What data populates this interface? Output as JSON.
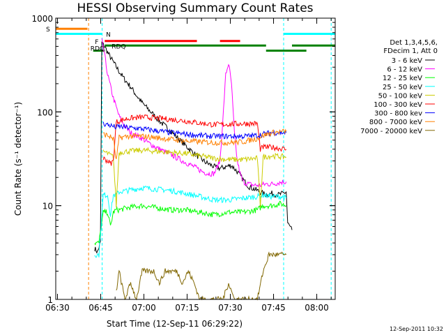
{
  "chart_data": {
    "type": "line",
    "title": "HESSI Observing Summary Count Rates",
    "xlabel": "Start Time (12-Sep-11 06:29:22)",
    "ylabel": "Count Rate (s⁻¹ detector⁻¹)",
    "x_unit": "minutes since 06:29:22",
    "xlim": [
      0,
      97
    ],
    "ylim": [
      1,
      1000
    ],
    "yscale": "log",
    "x_ticks": [
      {
        "value": 0.6,
        "label": "06:30"
      },
      {
        "value": 15.6,
        "label": "06:45"
      },
      {
        "value": 30.6,
        "label": "07:00"
      },
      {
        "value": 45.6,
        "label": "07:15"
      },
      {
        "value": 60.6,
        "label": "07:30"
      },
      {
        "value": 75.6,
        "label": "07:45"
      },
      {
        "value": 90.6,
        "label": "08:00"
      }
    ],
    "y_ticks": [
      {
        "value": 1,
        "label": "1"
      },
      {
        "value": 10,
        "label": "10"
      },
      {
        "value": 100,
        "label": "100"
      },
      {
        "value": 1000,
        "label": "1000"
      }
    ],
    "legend": {
      "placement": "right",
      "header": [
        "Det 1,3,4,5,6,",
        "FDecim 1, Att 0"
      ]
    },
    "series": [
      {
        "name": "3 - 6 keV",
        "color": "#000000",
        "x": [
          13.5,
          14.5,
          15.5,
          16,
          17,
          18,
          20,
          22,
          24,
          26,
          28,
          30,
          33,
          36,
          40,
          44,
          48,
          52,
          55,
          57,
          59,
          61,
          63,
          65,
          67,
          69,
          71,
          73,
          75,
          77,
          79,
          80,
          80.5,
          82
        ],
        "y": [
          3.5,
          3.2,
          4,
          540,
          500,
          430,
          340,
          270,
          220,
          185,
          150,
          125,
          100,
          80,
          62,
          47,
          36,
          29,
          26,
          25,
          26,
          27,
          23,
          19,
          16,
          15,
          14,
          13,
          13.5,
          13,
          13.5,
          14,
          6.5,
          5.5
        ]
      },
      {
        "name": "6 - 12 keV",
        "color": "#ff00ff",
        "x": [
          16,
          17,
          18,
          20,
          22,
          24,
          26,
          28,
          30,
          33,
          36,
          40,
          44,
          48,
          51,
          53,
          55,
          57,
          58,
          59,
          60,
          61,
          62,
          63,
          64,
          65,
          67,
          69,
          71,
          73,
          75,
          77,
          79,
          80
        ],
        "y": [
          580,
          400,
          250,
          140,
          90,
          70,
          60,
          56,
          52,
          45,
          40,
          35,
          30,
          26,
          23,
          22,
          22,
          30,
          80,
          250,
          330,
          200,
          60,
          30,
          22,
          18,
          17,
          16.5,
          16.5,
          17,
          17,
          17.5,
          18,
          18
        ]
      },
      {
        "name": "12 - 25 keV",
        "color": "#00ff00",
        "x": [
          13.5,
          15,
          16.5,
          18,
          19,
          20,
          21,
          22,
          25,
          30,
          35,
          40,
          45,
          50,
          55,
          60,
          65,
          70,
          72,
          75,
          78,
          80
        ],
        "y": [
          4,
          4,
          8.5,
          8.5,
          6,
          8.5,
          9,
          9,
          9.5,
          10,
          9.5,
          9,
          9,
          8.5,
          8,
          8.5,
          8.5,
          9,
          10,
          10,
          10.5,
          10
        ]
      },
      {
        "name": "25 - 50 keV",
        "color": "#00ffff",
        "x": [
          13.5,
          15,
          16.5,
          18,
          19,
          20,
          21,
          22,
          25,
          30,
          35,
          40,
          45,
          50,
          55,
          60,
          65,
          70,
          72,
          75,
          78,
          80
        ],
        "y": [
          3,
          3,
          13,
          13,
          8,
          13,
          13,
          14,
          14.5,
          15.5,
          15,
          14.5,
          13.5,
          12.5,
          11.5,
          11.5,
          12,
          12.5,
          13,
          12.5,
          12.5,
          12
        ]
      },
      {
        "name": "50 - 100 keV",
        "color": "#cccc00",
        "x": [
          16.5,
          18,
          20,
          21,
          22,
          25,
          30,
          35,
          40,
          45,
          50,
          55,
          60,
          65,
          70,
          71,
          72,
          75,
          80
        ],
        "y": [
          38,
          36,
          33,
          10,
          37,
          38,
          39,
          38,
          37,
          36,
          34,
          32,
          31,
          31,
          32,
          10,
          33,
          34,
          33
        ]
      },
      {
        "name": "100 - 300 keV",
        "color": "#ff0000",
        "x": [
          16.5,
          18,
          19,
          20,
          21,
          22,
          25,
          30,
          35,
          40,
          45,
          50,
          55,
          60,
          65,
          70,
          71,
          72,
          75,
          80
        ],
        "y": [
          32,
          30,
          28,
          30,
          78,
          80,
          85,
          88,
          86,
          83,
          80,
          76,
          73,
          74,
          75,
          75,
          40,
          42,
          42,
          40
        ]
      },
      {
        "name": "300 - 800 kev",
        "color": "#0000ff",
        "x": [
          16.5,
          18,
          20,
          21,
          22,
          25,
          30,
          35,
          40,
          45,
          50,
          55,
          60,
          65,
          70,
          72,
          75,
          80
        ],
        "y": [
          75,
          73,
          70,
          68,
          70,
          68,
          66,
          63,
          60,
          58,
          56,
          55,
          55,
          55,
          56,
          58,
          60,
          60
        ]
      },
      {
        "name": "800 - 7000 keV",
        "color": "#ff8000",
        "x": [
          16.5,
          18,
          20,
          21,
          22,
          25,
          30,
          35,
          40,
          45,
          50,
          55,
          60,
          65,
          70,
          72,
          75,
          80
        ],
        "y": [
          58,
          56,
          52,
          30,
          53,
          55,
          55,
          53,
          51,
          49,
          48,
          47,
          47,
          48,
          52,
          56,
          60,
          62
        ]
      },
      {
        "name": "7000 - 20000 keV",
        "color": "#806600",
        "x": [
          21,
          22,
          24,
          26,
          28,
          30,
          32,
          34,
          36,
          38,
          40,
          42,
          44,
          46,
          48,
          50,
          52,
          54,
          56,
          58,
          60,
          62,
          64,
          66,
          68,
          70,
          72,
          74,
          76,
          78,
          80
        ],
        "y": [
          1.2,
          2,
          1,
          1.5,
          1,
          2,
          2,
          2,
          1.5,
          2,
          2,
          2,
          1.5,
          2,
          1.5,
          1,
          1,
          1,
          1,
          1,
          1.5,
          1,
          1,
          1,
          1,
          1,
          2,
          3,
          3,
          3,
          3
        ]
      }
    ],
    "flag_bars": [
      {
        "label": "S",
        "color": "#ff8000",
        "segments": [
          [
            0,
            11
          ]
        ],
        "level": 770
      },
      {
        "label": "N",
        "color": "#00ffff",
        "segments": [
          [
            0,
            16
          ],
          [
            79,
            97
          ]
        ],
        "level": 680
      },
      {
        "label": "F",
        "color": "#ff0000",
        "segments": [
          [
            17,
            49
          ],
          [
            57,
            64
          ]
        ],
        "level": 570
      },
      {
        "label": "RDQ",
        "color": "#008000",
        "segments": [
          [
            17,
            73
          ],
          [
            82,
            97
          ]
        ],
        "level": 510
      },
      {
        "label": "RDQ",
        "color": "#008000",
        "segments": [
          [
            13,
            17
          ],
          [
            73,
            87
          ]
        ],
        "level": 450
      }
    ],
    "vertical_markers": [
      {
        "x": 11.4,
        "color": "#ff8000"
      },
      {
        "x": 16.1,
        "color": "#00ffff"
      },
      {
        "x": 79.1,
        "color": "#00ffff"
      },
      {
        "x": 95.6,
        "color": "#00ffff"
      }
    ]
  },
  "footer": {
    "date_stamp": "12-Sep-2011 10:32"
  }
}
